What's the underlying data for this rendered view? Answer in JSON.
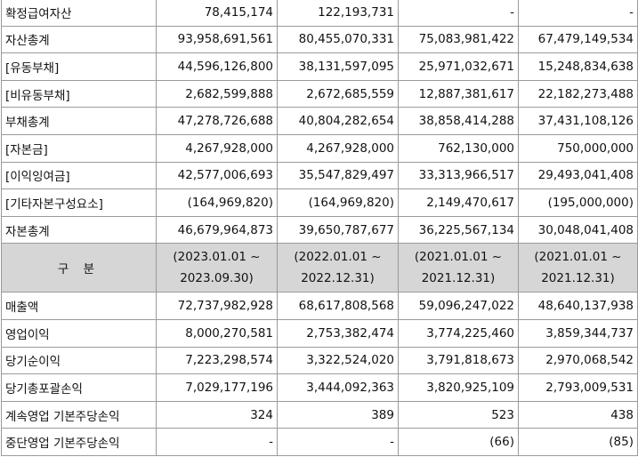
{
  "balance_rows": [
    {
      "label": "확정급여자산",
      "values": [
        "78,415,174",
        "122,193,731",
        "-",
        "-"
      ]
    },
    {
      "label": "자산총계",
      "values": [
        "93,958,691,561",
        "80,455,070,331",
        "75,083,981,422",
        "67,479,149,534"
      ]
    },
    {
      "label": "[유동부채]",
      "values": [
        "44,596,126,800",
        "38,131,597,095",
        "25,971,032,671",
        "15,248,834,638"
      ]
    },
    {
      "label": "[비유동부채]",
      "values": [
        "2,682,599,888",
        "2,672,685,559",
        "12,887,381,617",
        "22,182,273,488"
      ]
    },
    {
      "label": "부채총계",
      "values": [
        "47,278,726,688",
        "40,804,282,654",
        "38,858,414,288",
        "37,431,108,126"
      ]
    },
    {
      "label": "[자본금]",
      "values": [
        "4,267,928,000",
        "4,267,928,000",
        "762,130,000",
        "750,000,000"
      ]
    },
    {
      "label": "[이익잉여금]",
      "values": [
        "42,577,006,693",
        "35,547,829,497",
        "33,313,966,517",
        "29,493,041,408"
      ]
    },
    {
      "label": "[기타자본구성요소]",
      "values": [
        "(164,969,820)",
        "(164,969,820)",
        "2,149,470,617",
        "(195,000,000)"
      ]
    },
    {
      "label": "자본총계",
      "values": [
        "46,679,964,873",
        "39,650,787,677",
        "36,225,567,134",
        "30,048,041,408"
      ]
    }
  ],
  "header": {
    "label": "구 분",
    "periods": [
      {
        "line1": "(2023.01.01 ~",
        "line2": "2023.09.30)"
      },
      {
        "line1": "(2022.01.01 ~",
        "line2": "2022.12.31)"
      },
      {
        "line1": "(2021.01.01 ~",
        "line2": "2021.12.31)"
      },
      {
        "line1": "(2021.01.01 ~",
        "line2": "2021.12.31)"
      }
    ]
  },
  "income_rows": [
    {
      "label": "매출액",
      "values": [
        "72,737,982,928",
        "68,617,808,568",
        "59,096,247,022",
        "48,640,137,938"
      ]
    },
    {
      "label": "영업이익",
      "values": [
        "8,000,270,581",
        "2,753,382,474",
        "3,774,225,460",
        "3,859,344,737"
      ]
    },
    {
      "label": "당기순이익",
      "values": [
        "7,223,298,574",
        "3,322,524,020",
        "3,791,818,673",
        "2,970,068,542"
      ]
    },
    {
      "label": "당기총포괄손익",
      "values": [
        "7,029,177,196",
        "3,444,092,363",
        "3,820,925,109",
        "2,793,009,531"
      ]
    },
    {
      "label": "계속영업 기본주당손익",
      "values": [
        "324",
        "389",
        "523",
        "438"
      ]
    },
    {
      "label": "중단영업 기본주당손익",
      "values": [
        "-",
        "-",
        "(66)",
        "(85)"
      ]
    }
  ]
}
